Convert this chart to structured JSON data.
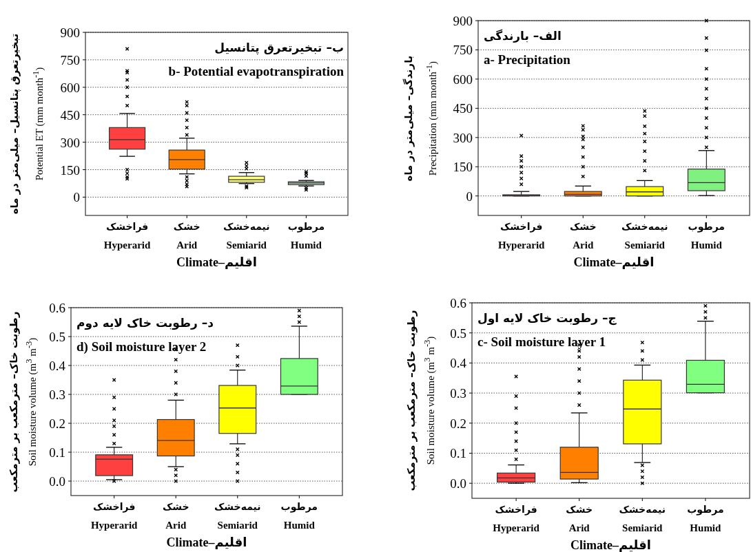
{
  "chart_data": [
    {
      "type": "box",
      "title": "ب– تبخیرتعرق پتانسیل",
      "subtitle": "b- Potential evapotranspiration",
      "ylabel": "تبخیرتعرق پتانسیل– میلی‌متر در ماه\nPotential ET (mm month$^{-1}$)",
      "xlabel": "Climate–اقلیم",
      "categories": [
        "فراخشک\nHyperarid",
        "خشک\nArid",
        "نیمه‌خشک\nSemiarid",
        "مرطوب\nHumid"
      ],
      "colors": [
        "#ff4040",
        "#ff8000",
        "#ffff80",
        "#c8e6c8"
      ],
      "boxes": [
        {
          "low": 223,
          "q1": 262,
          "median": 314,
          "q3": 380,
          "high": 457,
          "outliers": [
            100,
            110,
            130,
            150,
            500,
            550,
            600,
            640,
            680,
            690,
            810
          ]
        },
        {
          "low": 127,
          "q1": 153,
          "median": 205,
          "q3": 257,
          "high": 322,
          "outliers": [
            58,
            70,
            90,
            110,
            340,
            380,
            420,
            460,
            500,
            520
          ]
        },
        {
          "low": 74,
          "q1": 81,
          "median": 95,
          "q3": 114,
          "high": 134,
          "outliers": [
            52,
            60,
            155,
            170,
            188
          ]
        },
        {
          "low": 61,
          "q1": 68,
          "median": 77,
          "q3": 84,
          "high": 91,
          "outliers": [
            40,
            50,
            115,
            130,
            138
          ]
        }
      ],
      "ylim": [
        -100,
        900
      ],
      "yticks": [
        0,
        150,
        300,
        450,
        600,
        750,
        900
      ],
      "grid": "y"
    },
    {
      "type": "box",
      "title": "الف– بارندگی",
      "subtitle": "a- Precipitation",
      "ylabel": "بارندگی– میلی‌متر در ماه\nPrecipitation (mm month$^{-1}$)",
      "xlabel": "Climate–اقلیم",
      "categories": [
        "فراخشک\nHyperarid",
        "خشک\nArid",
        "نیمه‌خشک\nSemiarid",
        "مرطوب\nHumid"
      ],
      "colors": [
        "#a0403a",
        "#ff8000",
        "#ffff00",
        "#80f080"
      ],
      "boxes": [
        {
          "low": 0,
          "q1": 0,
          "median": 2,
          "q3": 6,
          "high": 23,
          "outliers": [
            60,
            90,
            120,
            150,
            180,
            205,
            310
          ]
        },
        {
          "low": 0,
          "q1": 0,
          "median": 8,
          "q3": 23,
          "high": 51,
          "outliers": [
            100,
            150,
            200,
            250,
            290,
            306,
            340,
            360
          ]
        },
        {
          "low": 0,
          "q1": 0,
          "median": 21,
          "q3": 48,
          "high": 79,
          "outliers": [
            130,
            180,
            230,
            280,
            320,
            358,
            410,
            436
          ]
        },
        {
          "low": 2,
          "q1": 27,
          "median": 68,
          "q3": 138,
          "high": 233,
          "outliers": [
            250,
            300,
            350,
            400,
            450,
            500,
            550,
            600,
            653,
            748,
            811,
            900
          ]
        }
      ],
      "ylim": [
        -100,
        900
      ],
      "yticks": [
        0,
        150,
        300,
        450,
        600,
        750,
        900
      ],
      "grid": "y"
    },
    {
      "type": "box",
      "title": "د– رطوبت خاک لایه دوم",
      "subtitle": "d) Soil moisture layer 2",
      "ylabel": "رطوبت خاک– مترمکعب بر مترمکعب\nSoil moisture volume (m$^{3}$ m$^{-3}$)",
      "xlabel": "Climate–اقلیم",
      "categories": [
        "فراخشک\nHyperarid",
        "خشک\nArid",
        "نیمه‌خشک\nSemiarid",
        "مرطوب\nHumid"
      ],
      "colors": [
        "#ff4040",
        "#ff8000",
        "#ffff00",
        "#80ff80"
      ],
      "boxes": [
        {
          "low": 0.005,
          "q1": 0.019,
          "median": 0.076,
          "q3": 0.091,
          "high": 0.117,
          "outliers": [
            0,
            0.13,
            0.16,
            0.19,
            0.21,
            0.25,
            0.29,
            0.35
          ]
        },
        {
          "low": 0.05,
          "q1": 0.087,
          "median": 0.141,
          "q3": 0.213,
          "high": 0.28,
          "outliers": [
            0,
            0.02,
            0.04,
            0.3,
            0.34,
            0.38,
            0.42,
            0.455
          ]
        },
        {
          "low": 0.129,
          "q1": 0.165,
          "median": 0.253,
          "q3": 0.331,
          "high": 0.384,
          "outliers": [
            0,
            0.03,
            0.06,
            0.09,
            0.11,
            0.4,
            0.43,
            0.47
          ]
        },
        {
          "low": 0.3,
          "q1": 0.3,
          "median": 0.329,
          "q3": 0.424,
          "high": 0.536,
          "outliers": [
            0.55,
            0.57,
            0.59
          ]
        }
      ],
      "ylim": [
        -0.05,
        0.6
      ],
      "yticks": [
        {
          "value": 0,
          "label": "0.0"
        },
        0.1,
        0.2,
        0.3,
        0.4,
        0.5,
        0.6
      ],
      "grid": "y"
    },
    {
      "type": "box",
      "title": "ج– رطوبت خاک لایه اول",
      "subtitle": "c- Soil moisture layer 1",
      "ylabel": "رطوبت خاک– مترمکعب بر مترمکعب\nSoil moisture volume (m$^{3}$ m$^{-3}$)",
      "xlabel": "Climate–اقلیم",
      "categories": [
        "فراخشک\nHyperarid",
        "خشک\nArid",
        "نیمه‌خشک\nSemiarid",
        "مرطوب\nHumid"
      ],
      "colors": [
        "#ff4040",
        "#ff8000",
        "#ffff00",
        "#80ff80"
      ],
      "boxes": [
        {
          "low": 0,
          "q1": 0.004,
          "median": 0.018,
          "q3": 0.034,
          "high": 0.061,
          "outliers": [
            0.08,
            0.11,
            0.14,
            0.17,
            0.2,
            0.25,
            0.29,
            0.355
          ]
        },
        {
          "low": 0.002,
          "q1": 0.014,
          "median": 0.036,
          "q3": 0.12,
          "high": 0.234,
          "outliers": [
            0.26,
            0.3,
            0.34,
            0.38,
            0.42,
            0.44,
            0.46
          ]
        },
        {
          "low": 0.069,
          "q1": 0.131,
          "median": 0.247,
          "q3": 0.343,
          "high": 0.393,
          "outliers": [
            0,
            0.02,
            0.04,
            0.06,
            0.41,
            0.44,
            0.468
          ]
        },
        {
          "low": 0.301,
          "q1": 0.301,
          "median": 0.329,
          "q3": 0.409,
          "high": 0.539,
          "outliers": [
            0.55,
            0.57,
            0.59
          ]
        }
      ],
      "ylim": [
        -0.05,
        0.6
      ],
      "yticks": [
        {
          "value": 0,
          "label": "0.0"
        },
        0.1,
        0.2,
        0.3,
        0.4,
        0.5,
        0.6
      ],
      "grid": "y"
    }
  ]
}
